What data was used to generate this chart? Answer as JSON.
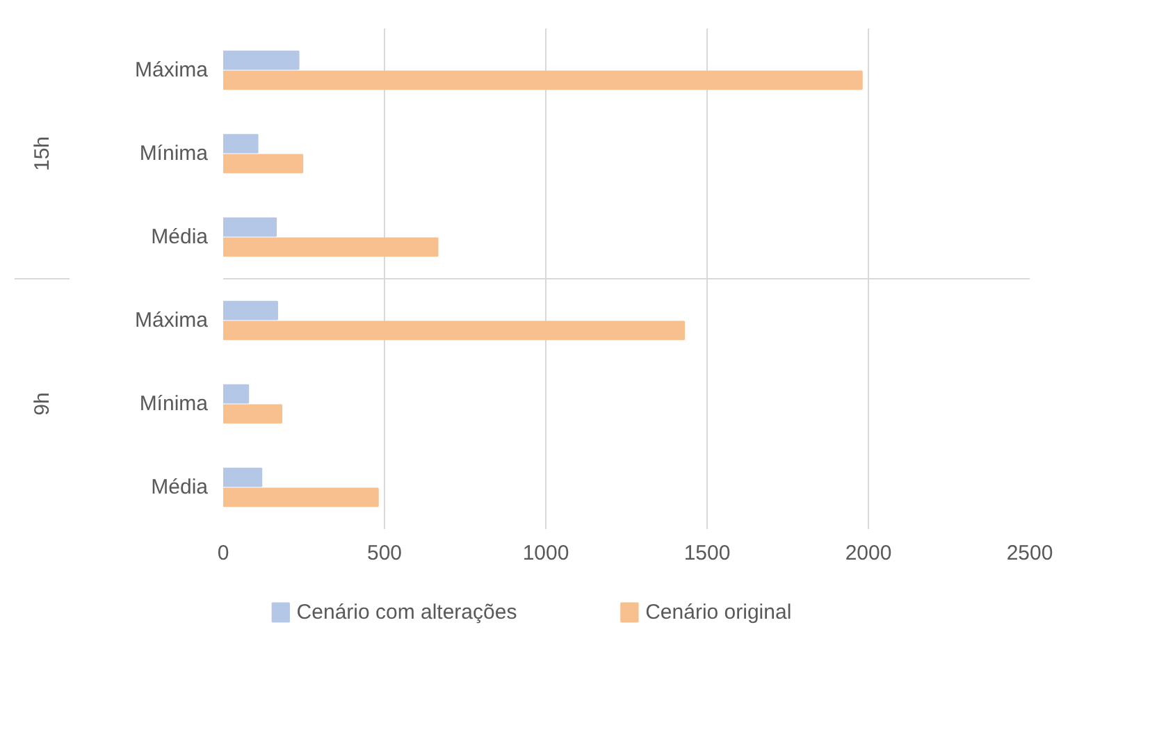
{
  "chart_data": {
    "type": "bar",
    "orientation": "horizontal",
    "categories": [
      "Máxima",
      "Mínima",
      "Média",
      "Máxima",
      "Mínima",
      "Média"
    ],
    "annotations": [
      "15h",
      "9h"
    ],
    "series": [
      {
        "name": "Cenário com alterações",
        "color": "#b4c7e7",
        "values": [
          234,
          107,
          164,
          168,
          78,
          119
        ]
      },
      {
        "name": "Cenário original",
        "color": "#f8bf8f",
        "values": [
          1980,
          246,
          665,
          1429,
          181,
          480
        ]
      }
    ],
    "xlim": [
      0,
      2500
    ],
    "xticks": [
      0,
      500,
      1000,
      1500,
      2000,
      2500
    ],
    "grid": "x",
    "legend": "bottom"
  }
}
